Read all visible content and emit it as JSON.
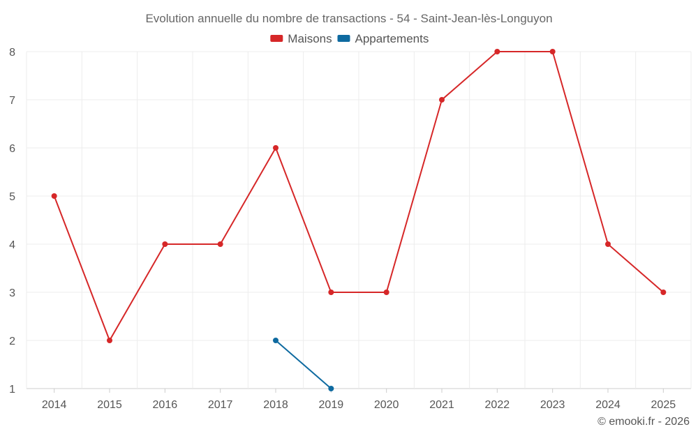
{
  "chart_data": {
    "type": "line",
    "title": "Evolution annuelle du nombre de transactions - 54 - Saint-Jean-lès-Longuyon",
    "xlabel": "",
    "ylabel": "",
    "categories": [
      "2014",
      "2015",
      "2016",
      "2017",
      "2018",
      "2019",
      "2020",
      "2021",
      "2022",
      "2023",
      "2024",
      "2025"
    ],
    "ylim": [
      1,
      8
    ],
    "yticks": [
      1,
      2,
      3,
      4,
      5,
      6,
      7,
      8
    ],
    "grid": true,
    "legend_position": "top-center",
    "series": [
      {
        "name": "Maisons",
        "color": "#d62728",
        "values": [
          5,
          2,
          4,
          4,
          6,
          3,
          3,
          7,
          8,
          8,
          4,
          3
        ]
      },
      {
        "name": "Appartements",
        "color": "#0e6aa0",
        "values": [
          null,
          null,
          null,
          null,
          2,
          1,
          null,
          null,
          null,
          null,
          null,
          null
        ]
      }
    ]
  },
  "credit": "© emooki.fr - 2026"
}
